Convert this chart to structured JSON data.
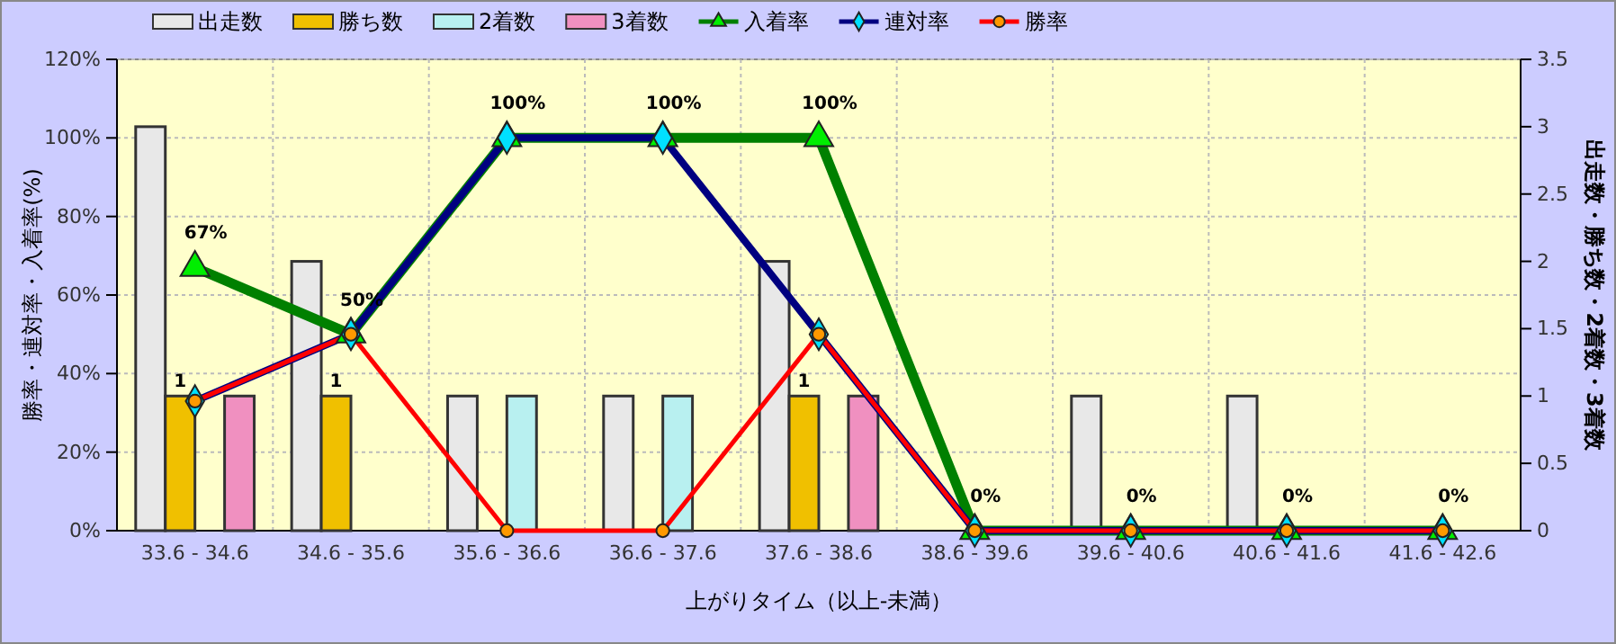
{
  "chart_data": {
    "type": "bar",
    "xlabel": "上がりタイム（以上-未満）",
    "ylabel": "勝率・連対率・入着率(%)",
    "y2label": "出走数・勝ち数・2着数・3着数",
    "categories": [
      "33.6 - 34.6",
      "34.6 - 35.6",
      "35.6 - 36.6",
      "36.6 - 37.6",
      "37.6 - 38.6",
      "38.6 - 39.6",
      "39.6 - 40.6",
      "40.6 - 41.6",
      "41.6 - 42.6"
    ],
    "series": [
      {
        "name": "出走数",
        "axis": "y2",
        "color": "#e8e8e8",
        "values": [
          3,
          2,
          1,
          1,
          2,
          0,
          1,
          1,
          0
        ]
      },
      {
        "name": "勝ち数",
        "axis": "y2",
        "color": "#f0c000",
        "values": [
          1,
          1,
          0,
          0,
          1,
          0,
          0,
          0,
          0
        ],
        "value_labels": [
          "1",
          "1",
          null,
          null,
          "1",
          null,
          null,
          null,
          null
        ]
      },
      {
        "name": "2着数",
        "axis": "y2",
        "color": "#b8f0f0",
        "values": [
          0,
          0,
          1,
          1,
          0,
          0,
          0,
          0,
          0
        ]
      },
      {
        "name": "3着数",
        "axis": "y2",
        "color": "#f090c0",
        "values": [
          1,
          0,
          0,
          0,
          1,
          0,
          0,
          0,
          0
        ]
      },
      {
        "name": "入着率",
        "type": "line",
        "color": "#008000",
        "marker": "triangle",
        "values": [
          67,
          50,
          100,
          100,
          100,
          0,
          0,
          0,
          0
        ],
        "value_labels": [
          "67%",
          "50%",
          "100%",
          "100%",
          "100%",
          "0%",
          "0%",
          "0%",
          "0%"
        ]
      },
      {
        "name": "連対率",
        "type": "line",
        "color": "#000080",
        "marker": "diamond",
        "values": [
          33,
          50,
          100,
          100,
          50,
          0,
          0,
          0,
          0
        ]
      },
      {
        "name": "勝率",
        "type": "line",
        "color": "#ff0000",
        "marker": "circle",
        "values": [
          33,
          50,
          0,
          0,
          50,
          0,
          0,
          0,
          0
        ]
      }
    ],
    "ylim": [
      0,
      120
    ],
    "yticks": [
      {
        "value": 0,
        "label": "0%"
      },
      {
        "value": 20,
        "label": "20%"
      },
      {
        "value": 40,
        "label": "40%"
      },
      {
        "value": 60,
        "label": "60%"
      },
      {
        "value": 80,
        "label": "80%"
      },
      {
        "value": 100,
        "label": "100%"
      },
      {
        "value": 120,
        "label": "120%"
      }
    ],
    "y2lim": [
      0,
      3.5
    ],
    "y2ticks": [
      0,
      0.5,
      1,
      1.5,
      2,
      2.5,
      3,
      3.5
    ],
    "grid": true,
    "legend": "top"
  }
}
